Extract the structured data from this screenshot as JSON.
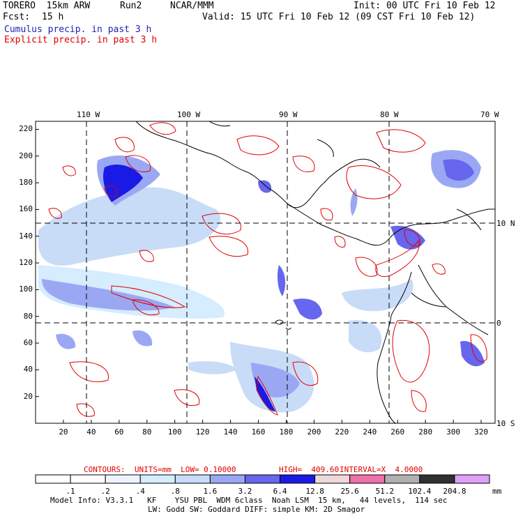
{
  "header": {
    "model": "TORERO  15km ARW",
    "run": "Run2",
    "org": "NCAR/MMM",
    "init": "Init: 00 UTC Fri 10 Feb 12",
    "fcst_label": "Fcst:",
    "fcst_value": "15 h",
    "valid": "Valid: 15 UTC Fri 10 Feb 12 (09 CST Fri 10 Feb 12)",
    "cumulus_label": "Cumulus precip. in past 3 h",
    "explicit_label": "Explicit precip. in past 3 h"
  },
  "colors": {
    "cumulus": "#1f1fb0",
    "explicit": "#e00000"
  },
  "map": {
    "top_axis": [
      "110 W",
      "100 W",
      "90 W",
      "80 W",
      "70 W"
    ],
    "right_axis": [
      "10 N",
      "0",
      "10 S"
    ],
    "left_ticks": [
      "220",
      "200",
      "180",
      "160",
      "140",
      "120",
      "100",
      "80",
      "60",
      "40",
      "20"
    ],
    "bottom_ticks": [
      "20",
      "40",
      "60",
      "80",
      "100",
      "120",
      "140",
      "160",
      "180",
      "200",
      "220",
      "240",
      "260",
      "280",
      "300",
      "320"
    ]
  },
  "contours": {
    "units_text": "CONTOURS:  UNITS=mm  LOW= 0.10000",
    "high_text": "HIGH=  409.60",
    "interval_text": "INTERVAL=X  4.0000"
  },
  "colorbar": {
    "unit": "mm",
    "labels": [
      ".1",
      ".2",
      ".4",
      ".8",
      "1.6",
      "3.2",
      "6.4",
      "12.8",
      "25.6",
      "51.2",
      "102.4",
      "204.8"
    ],
    "colors": [
      "#ffffff",
      "#ffffff",
      "#eef4ff",
      "#d6ecff",
      "#c8dcf8",
      "#9aa8f4",
      "#6666ee",
      "#1a1ae6",
      "#f0d8d8",
      "#f070a8",
      "#b0b0b0",
      "#303030",
      "#e0a0f8"
    ]
  },
  "footer": {
    "line1": "Model Info: V3.3.1   KF    YSU PBL  WDM 6class  Noah LSM  15 km,   44 levels,  114 sec",
    "line2": "LW: Godd SW: Goddard DIFF: simple KM: 2D Smagor"
  }
}
